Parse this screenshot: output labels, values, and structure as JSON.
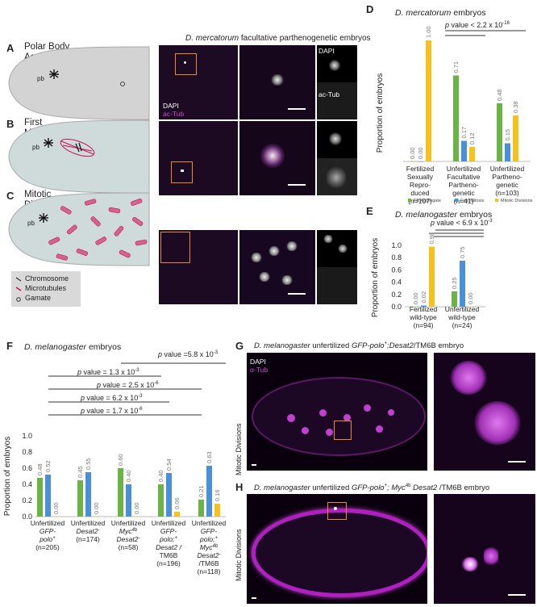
{
  "panelA": {
    "letter": "A",
    "label_line1": "Polar Body",
    "label_line2": "Aggregate"
  },
  "panelB": {
    "letter": "B",
    "label_line1": "First",
    "label_line2": "Mitosis"
  },
  "panelC": {
    "letter": "C",
    "label_line1": "Mitotic",
    "label_line2": "Divisions"
  },
  "schematic": {
    "pb": "pb"
  },
  "legend": {
    "chromosome": "Chromosome",
    "microtubules": "Microtubules",
    "gamate": "Gamate"
  },
  "micro_top": {
    "title_species": "D. mercatorum",
    "title_rest": " facultative parthenogenetic embryos",
    "dapi": "DAPI",
    "actub": "ac-Tub"
  },
  "panelD": {
    "letter": "D",
    "title_species": "D. mercatorum",
    "title_rest": " embryos",
    "pvalue": "p value < 2.2 x 10",
    "pvalue_exp": "-16",
    "ylabel": "Proportion of embryos",
    "legend": [
      "PB Aggregate",
      "First Mitosis",
      "Mitotic Divisions"
    ],
    "groups": [
      {
        "l1": "Fertilized",
        "l2": "Sexually",
        "l3": "Repro-",
        "l4": "duced",
        "n": "(n=107)"
      },
      {
        "l1": "Unfertilized",
        "l2": "Facultative",
        "l3": "Partheno-",
        "l4": "genetic",
        "n": "(n=41)"
      },
      {
        "l1": "Unfertilized",
        "l2": "Parthenо-",
        "l3": "genetic",
        "l4": "",
        "n": "(n=103)"
      }
    ]
  },
  "panelE": {
    "letter": "E",
    "title_species": "D. melanogaster",
    "title_rest": " embryos",
    "pvalue": "p value < 6.9 x 10",
    "pvalue_exp": "-3",
    "ylabel": "Proportion of embryos",
    "groups": [
      {
        "l1": "Fertilized",
        "l2": "wild-type",
        "n": "(n=94)"
      },
      {
        "l1": "Unfertilized",
        "l2": "wild-type",
        "n": "(n=24)"
      }
    ]
  },
  "panelF": {
    "letter": "F",
    "title_species": "D. melanogaster",
    "title_rest": " embryos",
    "pvals": [
      {
        "t": "p value =5.8 x 10",
        "e": "-3"
      },
      {
        "t": "p value = 1.3 x 10",
        "e": "-3"
      },
      {
        "t": "p value = 2.5 x 10",
        "e": "-6"
      },
      {
        "t": "p value = 6.2 x 10",
        "e": "-3"
      },
      {
        "t": "p value = 1.7 x 10",
        "e": "-6"
      }
    ],
    "ylabel": "Proportion of embryos",
    "groups": [
      {
        "l1": "Unfertilized",
        "l2": "GFP-",
        "l3": "polo",
        "sup": "+",
        "l4": "",
        "n": "(n=205)"
      },
      {
        "l1": "Unfertilized",
        "l2": "Desat2",
        "l3": "",
        "sup": "-",
        "l4": "",
        "n": "(n=174)"
      },
      {
        "l1": "Unfertilized",
        "l2": "Myc",
        "l3": "Desat2",
        "sup": "4b",
        "l4": "",
        "n": "(n=58)"
      },
      {
        "l1": "Unfertilized",
        "l2": "GFP-",
        "l3": "polo",
        "sup": "+",
        "l4": "Desat2 /",
        "l5": "TM6B",
        "n": "(n=196)"
      },
      {
        "l1": "Unfertilized",
        "l2": "GFP-",
        "l3": "polo",
        "sup": "+",
        "l4": "Myc",
        "l5": "Desat2",
        "l6": "/TM6B",
        "n": "(n=118)"
      }
    ]
  },
  "panelG": {
    "letter": "G",
    "species": "D. melanogaster",
    "rest_a": " unfertilized ",
    "geno": "GFP-polo",
    "geno_sup": "+",
    "geno_rest": ";Desat2",
    "rest_b": "/TM6B embryo",
    "dapi": "DAPI",
    "atub": "α-Tub",
    "side": "Mitotic Divisions"
  },
  "panelH": {
    "letter": "H",
    "species": "D. melanogaster",
    "rest_a": " unfertilized ",
    "geno": "GFP-polo",
    "geno_sup": "+",
    "geno_rest": "; Myc",
    "geno_sup2": "4b",
    "geno_rest2": " Desat2",
    "rest_b": " /TM6B embryo",
    "side": "Mitotic Divisions"
  },
  "chart_data": [
    {
      "type": "bar",
      "title": "D. mercatorum embryos",
      "ylabel": "Proportion of embryos",
      "categories": [
        "Fertilized Sexually Reproduced (n=107)",
        "Unfertilized Facultative Parthenogenetic (n=41)",
        "Unfertilized Parthenogenetic (n=103)"
      ],
      "series": [
        {
          "name": "PB Aggregate",
          "color": "#6ab344",
          "values": [
            0.0,
            0.71,
            0.48
          ]
        },
        {
          "name": "First Mitosis",
          "color": "#4a90d9",
          "values": [
            0.0,
            0.17,
            0.15
          ]
        },
        {
          "name": "Mitotic Divisions",
          "color": "#f5c21b",
          "values": [
            1.0,
            0.12,
            0.38
          ]
        }
      ],
      "ylim": [
        0,
        1.0
      ],
      "annotation": "p value < 2.2 x 10-16"
    },
    {
      "type": "bar",
      "title": "D. melanogaster embryos",
      "ylabel": "Proportion of embryos",
      "categories": [
        "Fertilized wild-type (n=94)",
        "Unfertilized wild-type (n=24)"
      ],
      "series": [
        {
          "name": "PB Aggregate",
          "color": "#6ab344",
          "values": [
            0.0,
            0.25
          ]
        },
        {
          "name": "First Mitosis",
          "color": "#4a90d9",
          "values": [
            0.02,
            0.75
          ]
        },
        {
          "name": "Mitotic Divisions",
          "color": "#f5c21b",
          "values": [
            0.98,
            0.0
          ]
        }
      ],
      "ylim": [
        0,
        1.0
      ],
      "yticks": [
        "0.0",
        "0.2",
        "0.4",
        "0.6",
        "0.8",
        "1.0"
      ],
      "annotation": "p value < 6.9 x 10-3"
    },
    {
      "type": "bar",
      "title": "D. melanogaster embryos",
      "ylabel": "Proportion of embryos",
      "categories": [
        "Unfertilized GFP-polo+ (n=205)",
        "Unfertilized Desat2- (n=174)",
        "Unfertilized Myc4b Desat2- (n=58)",
        "Unfertilized GFP-polo+; Desat2-/TM6B (n=196)",
        "Unfertilized GFP-polo+; Myc4b Desat2-/TM6B (n=118)"
      ],
      "series": [
        {
          "name": "PB Aggregate",
          "color": "#6ab344",
          "values": [
            0.48,
            0.45,
            0.6,
            0.4,
            0.21
          ]
        },
        {
          "name": "First Mitosis",
          "color": "#4a90d9",
          "values": [
            0.52,
            0.55,
            0.4,
            0.54,
            0.63
          ]
        },
        {
          "name": "Mitotic Divisions",
          "color": "#f5c21b",
          "values": [
            0.0,
            0.0,
            0.0,
            0.06,
            0.16
          ]
        }
      ],
      "ylim": [
        0,
        1.0
      ],
      "yticks": [
        "0.0",
        "0.2",
        "0.4",
        "0.6",
        "0.8",
        "1.0"
      ]
    }
  ]
}
